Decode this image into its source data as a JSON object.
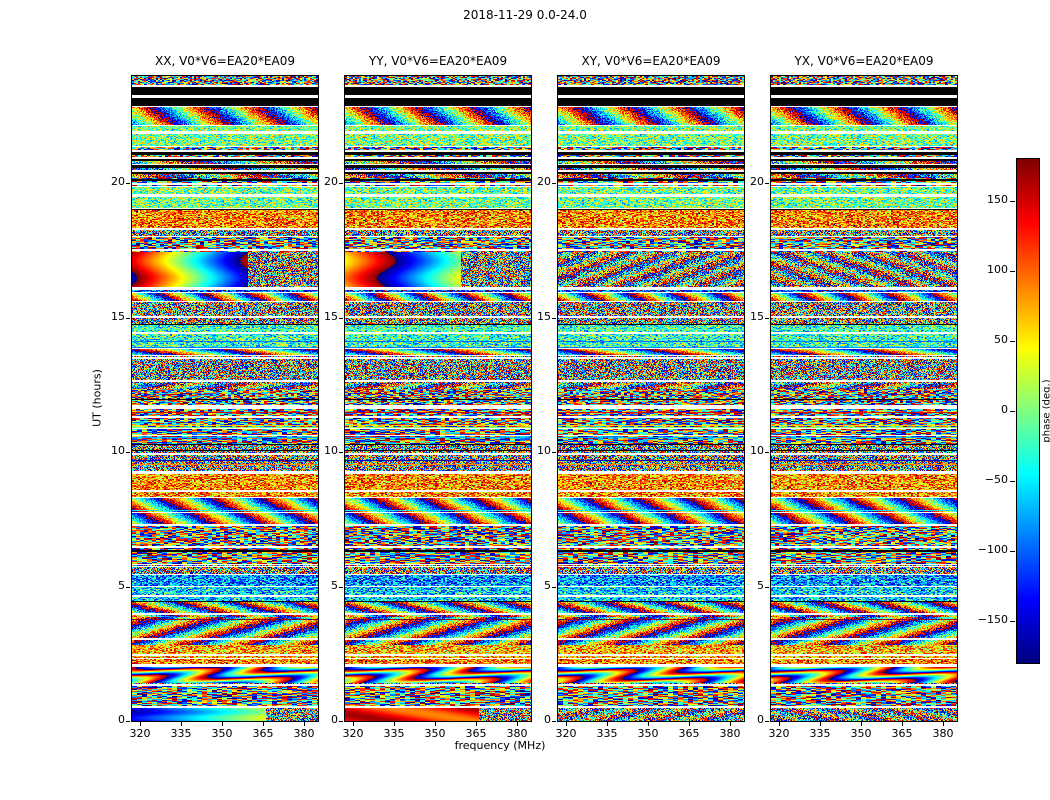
{
  "figure": {
    "title": "2018-11-29 0.0-24.0",
    "xlabel": "frequency (MHz)",
    "ylabel": "UT (hours)",
    "colorbar_label": "phase (deg.)"
  },
  "panels": [
    {
      "id": "XX",
      "title": "XX, V0*V6=EA20*EA09"
    },
    {
      "id": "YY",
      "title": "YY, V0*V6=EA20*EA09"
    },
    {
      "id": "XY",
      "title": "XY, V0*V6=EA20*EA09"
    },
    {
      "id": "YX",
      "title": "YX, V0*V6=EA20*EA09"
    }
  ],
  "chart_data": {
    "type": "heatmap",
    "title": "2018-11-29 0.0-24.0",
    "subplot_titles": [
      "XX, V0*V6=EA20*EA09",
      "YY, V0*V6=EA20*EA09",
      "XY, V0*V6=EA20*EA09",
      "YX, V0*V6=EA20*EA09"
    ],
    "xlabel": "frequency (MHz)",
    "ylabel": "UT (hours)",
    "value_label": "phase (deg.)",
    "x_range_mhz": [
      317,
      385
    ],
    "x_ticks_mhz": [
      320,
      335,
      350,
      365,
      380
    ],
    "y_range_hours": [
      0,
      24
    ],
    "y_ticks_hours": [
      0,
      5,
      10,
      15,
      20
    ],
    "value_range_deg": [
      -180,
      180
    ],
    "colorbar_ticks_deg": [
      150,
      100,
      50,
      0,
      -50,
      -100,
      -150
    ],
    "colormap": "jet",
    "legend_position": "right-colorbar",
    "grid": false,
    "description": "Visibility phase (deg.) versus frequency (317-385 MHz) and time (UT 0-24 h) for baseline V0*V6=EA20*EA09 in four polarization products XX, YY, XY, YX. Content is mostly phase-wrapped speckle noise in jet colors; solid black horizontal bands are flagged data, white horizontal rows are scan gaps; smooth wrapped phase ramps appear near UT 16.2-17.4 and UT 0-0.5 in XX/YY, and a wavy wrapped fringe pattern near UT 1.4-2.0 in all panels.",
    "features": {
      "flagged_black_ut": [
        [
          23.28,
          23.6
        ],
        [
          22.9,
          23.18
        ],
        [
          21.05,
          21.18
        ],
        [
          20.82,
          20.93
        ],
        [
          20.58,
          20.68
        ],
        [
          20.34,
          20.44
        ],
        [
          20.1,
          20.18
        ],
        [
          19.0,
          19.04
        ],
        [
          11.93,
          11.97
        ],
        [
          10.28,
          10.32
        ],
        [
          10.03,
          10.07
        ]
      ],
      "no_data_white_ut": [
        [
          23.6,
          23.68
        ],
        [
          23.18,
          23.28
        ],
        [
          21.85,
          21.95
        ],
        [
          21.18,
          21.24
        ],
        [
          20.93,
          20.99
        ],
        [
          20.68,
          20.74
        ],
        [
          20.44,
          20.5
        ],
        [
          19.95,
          20.02
        ],
        [
          19.48,
          19.6
        ],
        [
          18.3,
          18.36
        ],
        [
          17.47,
          17.56
        ],
        [
          16.02,
          16.14
        ],
        [
          15.0,
          15.07
        ],
        [
          14.4,
          14.46
        ],
        [
          13.47,
          13.54
        ],
        [
          12.62,
          12.68
        ],
        [
          11.62,
          11.74
        ],
        [
          11.28,
          11.34
        ],
        [
          10.6,
          10.66
        ],
        [
          9.9,
          9.97
        ],
        [
          9.2,
          9.29
        ],
        [
          8.52,
          8.58
        ],
        [
          7.73,
          7.79
        ],
        [
          6.42,
          6.51
        ],
        [
          5.72,
          5.78
        ],
        [
          4.62,
          4.7
        ],
        [
          3.95,
          4.01
        ],
        [
          3.02,
          3.1
        ],
        [
          2.42,
          2.48
        ],
        [
          2.0,
          2.07
        ],
        [
          1.32,
          1.38
        ],
        [
          0.5,
          0.57
        ]
      ],
      "smooth_phase_ramp_ut": [
        16.15,
        17.45
      ],
      "fringe_pattern_ut": [
        1.4,
        2.0
      ],
      "bottom_ramp_ut": [
        0.0,
        0.5
      ]
    }
  }
}
